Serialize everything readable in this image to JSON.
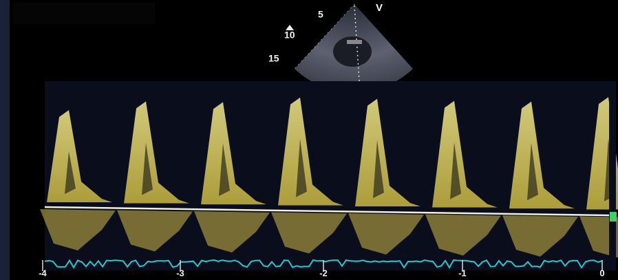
{
  "sector": {
    "depth_labels": [
      "5",
      "10",
      "15"
    ],
    "mode_label": "V"
  },
  "doppler": {
    "time_labels": [
      "-4",
      "-3",
      "-2",
      "-1",
      "0"
    ]
  }
}
